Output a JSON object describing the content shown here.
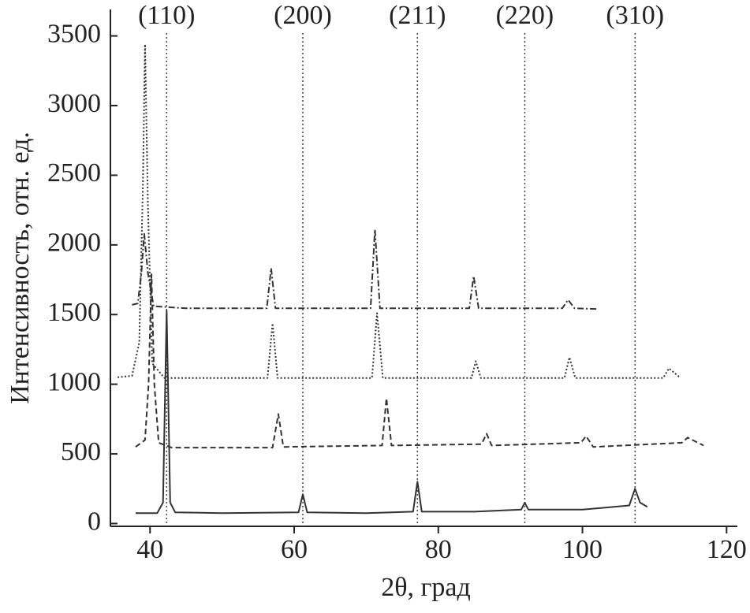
{
  "chart_data": {
    "type": "line",
    "xlabel": "2θ, град",
    "ylabel": "Интенсивность, отн. ед.",
    "xlim": [
      34.5,
      121.5
    ],
    "ylim": [
      -20,
      3690
    ],
    "xticks": [
      40,
      60,
      80,
      100,
      120
    ],
    "yticks": [
      0,
      500,
      1000,
      1500,
      2000,
      2500,
      3000,
      3500
    ],
    "reflections": [
      {
        "x": 42.3,
        "label": "(110)"
      },
      {
        "x": 61.2,
        "label": "(200)"
      },
      {
        "x": 77.1,
        "label": "(211)"
      },
      {
        "x": 92.0,
        "label": "(220)"
      },
      {
        "x": 107.3,
        "label": "(310)"
      }
    ],
    "series": [
      {
        "color": "#333333",
        "dash": "solid",
        "x": [
          38,
          41,
          41.8,
          42.3,
          42.8,
          43.5,
          50,
          60.6,
          61.2,
          61.8,
          70,
          76.5,
          77.1,
          77.7,
          85,
          91.5,
          92,
          92.5,
          100,
          106.5,
          107.3,
          108,
          109
        ],
        "values": [
          75,
          75,
          150,
          1530,
          150,
          80,
          75,
          80,
          210,
          80,
          75,
          85,
          300,
          85,
          85,
          100,
          150,
          100,
          100,
          130,
          250,
          150,
          120
        ]
      },
      {
        "color": "#333333",
        "dash": "dashed",
        "x": [
          38,
          39.3,
          39.8,
          40.2,
          40.6,
          41.2,
          43,
          57,
          57.8,
          58.5,
          72.2,
          72.8,
          73.5,
          86,
          86.7,
          87.4,
          99.8,
          100.5,
          101.5,
          113.8,
          114.6,
          116.8
        ],
        "values": [
          550,
          600,
          1000,
          1790,
          1000,
          580,
          545,
          545,
          786,
          550,
          560,
          900,
          560,
          570,
          645,
          560,
          580,
          628,
          550,
          580,
          617,
          560
        ]
      },
      {
        "color": "#333333",
        "dash": "dotted",
        "x": [
          35.5,
          37.5,
          38.5,
          39,
          39.3,
          39.7,
          40.3,
          42,
          56.3,
          57,
          57.7,
          70.8,
          71.5,
          72.3,
          84.6,
          85.2,
          85.9,
          97.5,
          98.2,
          99,
          111.2,
          112,
          113.5
        ],
        "values": [
          1050,
          1060,
          1300,
          2400,
          3440,
          2300,
          1150,
          1045,
          1045,
          1437,
          1045,
          1045,
          1510,
          1045,
          1045,
          1165,
          1045,
          1045,
          1193,
          1045,
          1045,
          1114,
          1050
        ]
      },
      {
        "color": "#333333",
        "dash": "dashdot",
        "x": [
          37.5,
          38.3,
          38.8,
          39.2,
          39.7,
          40.5,
          45,
          56.2,
          56.8,
          57.4,
          70.6,
          71.2,
          71.9,
          84.3,
          84.9,
          85.6,
          97.2,
          98,
          98.9,
          102
        ],
        "values": [
          1570,
          1580,
          1800,
          2080,
          1800,
          1560,
          1545,
          1545,
          1833,
          1545,
          1545,
          2110,
          1545,
          1545,
          1776,
          1545,
          1545,
          1606,
          1545,
          1540
        ]
      }
    ]
  }
}
